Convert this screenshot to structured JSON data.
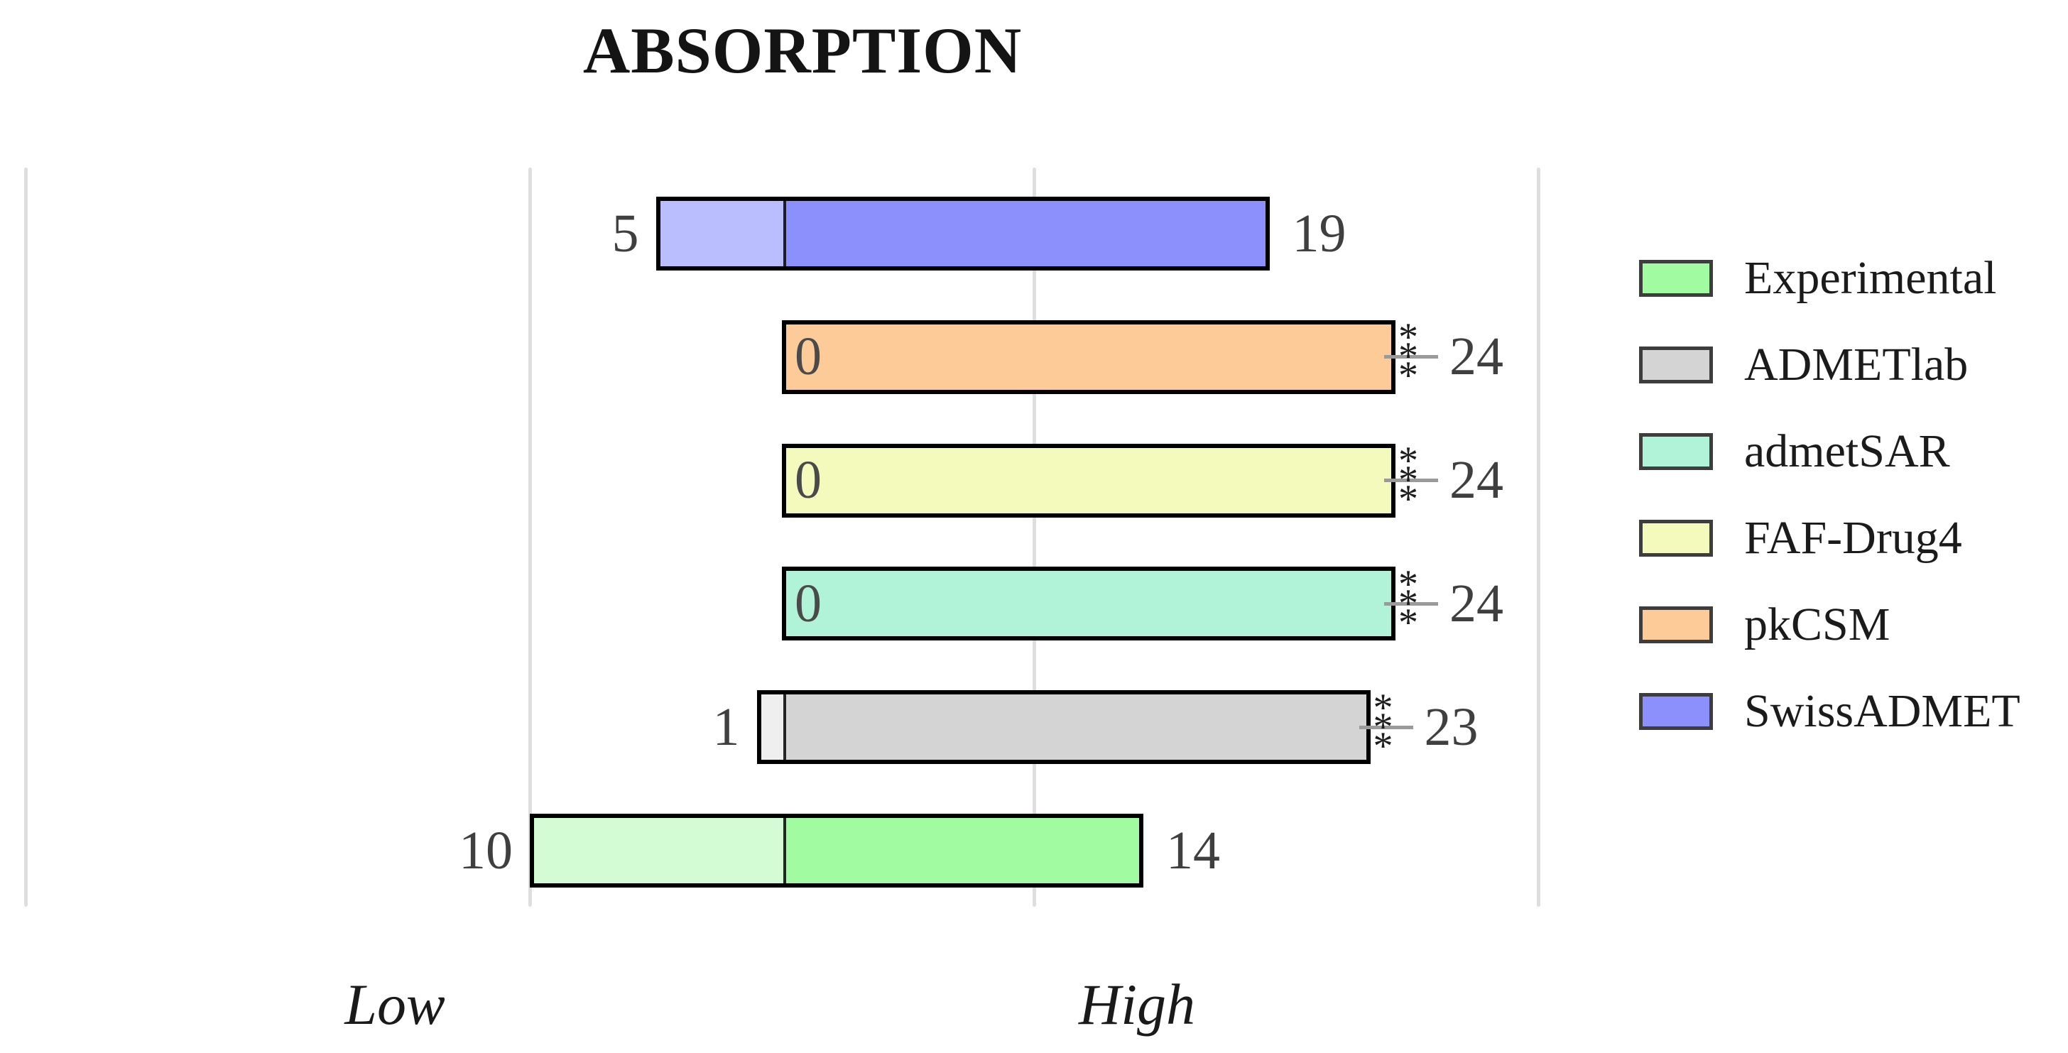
{
  "title": "ABSORPTION",
  "x_axis": {
    "low_label": "Low",
    "high_label": "High"
  },
  "legend": {
    "position": "right",
    "items": [
      {
        "label": "Experimental",
        "color": "#a1fca1"
      },
      {
        "label": "ADMETlab",
        "color": "#d4d4d4"
      },
      {
        "label": "admetSAR",
        "color": "#b1f3d8"
      },
      {
        "label": "FAF-Drug4",
        "color": "#f3fabc"
      },
      {
        "label": "pkCSM",
        "color": "#fdcb97"
      },
      {
        "label": "SwissADMET",
        "color": "#8c90fd"
      }
    ]
  },
  "chart_data": {
    "type": "bar",
    "subtype": "horizontal-diverging-stacked",
    "title": "ABSORPTION",
    "xlabel_left": "Low",
    "xlabel_right": "High",
    "grid": "vertical-light-gray",
    "legend_position": "right",
    "axis_range_units": [
      -30,
      30
    ],
    "gridline_units": [
      -30,
      -10,
      10,
      30
    ],
    "categories": [
      "SwissADMET",
      "pkCSM",
      "FAF-Drug4",
      "admetSAR",
      "ADMETlab",
      "Experimental"
    ],
    "series": [
      {
        "name": "Low",
        "values": [
          5,
          0,
          0,
          0,
          1,
          10
        ]
      },
      {
        "name": "High",
        "values": [
          19,
          24,
          24,
          24,
          23,
          14
        ]
      }
    ],
    "rows": [
      {
        "category": "SwissADMET",
        "low": 5,
        "high": 19,
        "low_label": "5",
        "high_label": "19",
        "significance": "",
        "high_color": "#8c90fd",
        "low_color": "#bbbefe"
      },
      {
        "category": "pkCSM",
        "low": 0,
        "high": 24,
        "low_label": "0",
        "high_label": "24",
        "significance": "***",
        "high_color": "#fdcb97",
        "low_color": "#fee6cc"
      },
      {
        "category": "FAF-Drug4",
        "low": 0,
        "high": 24,
        "low_label": "0",
        "high_label": "24",
        "significance": "***",
        "high_color": "#f3fabc",
        "low_color": "#f9fcdd"
      },
      {
        "category": "admetSAR",
        "low": 0,
        "high": 24,
        "low_label": "0",
        "high_label": "24",
        "significance": "***",
        "high_color": "#b1f3d8",
        "low_color": "#d8f8ea"
      },
      {
        "category": "ADMETlab",
        "low": 1,
        "high": 23,
        "low_label": "1",
        "high_label": "23",
        "significance": "***",
        "high_color": "#d4d4d4",
        "low_color": "#efefef"
      },
      {
        "category": "Experimental",
        "low": 10,
        "high": 14,
        "low_label": "10",
        "high_label": "14",
        "significance": "",
        "high_color": "#a1fca1",
        "low_color": "#d4fcd4"
      }
    ]
  }
}
